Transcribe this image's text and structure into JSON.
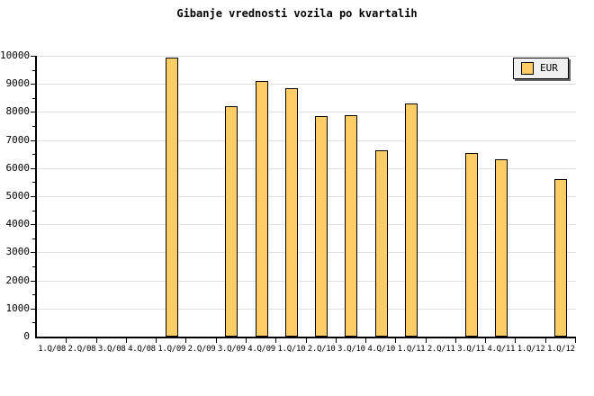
{
  "title": "Gibanje vrednosti vozila po kvartalih",
  "legend": {
    "label": "EUR"
  },
  "colors": {
    "background": "#FFFFFF",
    "bar_fill": "#FFCC66",
    "bar_border": "#000000",
    "grid": "#E0E0E0",
    "axis": "#000000",
    "legend_bg": "#F0F0F0",
    "legend_shadow": "#666666",
    "text": "#000000"
  },
  "chart_data": {
    "type": "bar",
    "title": "Gibanje vrednosti vozila po kvartalih",
    "categories": [
      "1.Q/08",
      "2.Q/08",
      "3.Q/08",
      "4.Q/08",
      "1.Q/09",
      "2.Q/09",
      "3.Q/09",
      "4.Q/09",
      "1.Q/10",
      "2.Q/10",
      "3.Q/10",
      "4.Q/10",
      "1.Q/11",
      "2.Q/11",
      "3.Q/11",
      "4.Q/11",
      "1.Q/12",
      "1.Q/12"
    ],
    "series": [
      {
        "name": "EUR",
        "values": [
          null,
          null,
          null,
          null,
          9950,
          null,
          8200,
          9100,
          8850,
          7850,
          7900,
          6650,
          8300,
          null,
          6550,
          6300,
          null,
          5600
        ]
      }
    ],
    "xlabel": "",
    "ylabel": "",
    "ylim": [
      0,
      10000
    ],
    "yticks": [
      0,
      1000,
      2000,
      3000,
      4000,
      5000,
      6000,
      7000,
      8000,
      9000,
      10000
    ],
    "ytick_minor_step": 500,
    "grid": true,
    "legend_position": "top-right"
  }
}
